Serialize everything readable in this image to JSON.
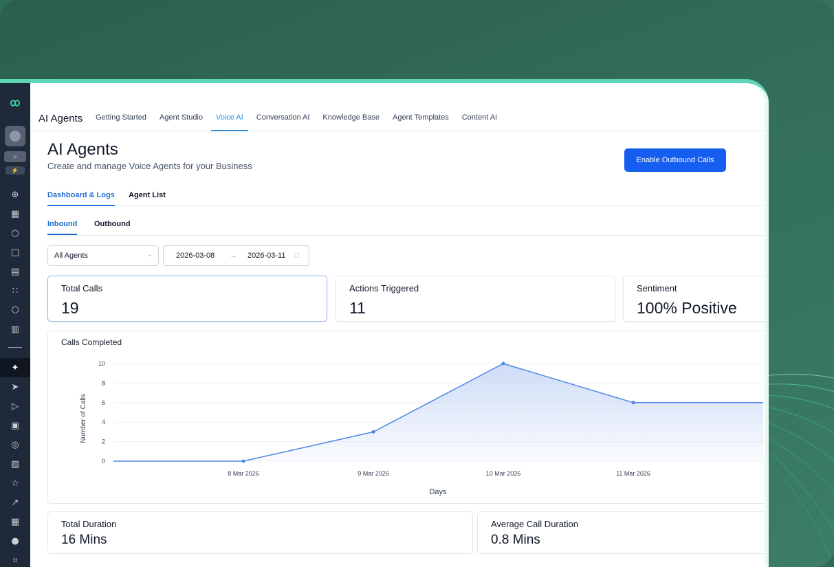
{
  "topnav": {
    "app_title": "AI Agents",
    "items": [
      {
        "label": "Getting Started"
      },
      {
        "label": "Agent Studio"
      },
      {
        "label": "Voice AI",
        "active": true
      },
      {
        "label": "Conversation AI"
      },
      {
        "label": "Knowledge Base"
      },
      {
        "label": "Agent Templates"
      },
      {
        "label": "Content AI"
      }
    ]
  },
  "header": {
    "title": "AI Agents",
    "subtitle": "Create and manage Voice Agents for your Business",
    "enable_button": "Enable Outbound Calls"
  },
  "tabs": {
    "primary": [
      "Dashboard & Logs",
      "Agent List"
    ],
    "secondary": [
      "Inbound",
      "Outbound"
    ]
  },
  "filters": {
    "agent_select": "All Agents",
    "date_start": "2026-03-08",
    "date_end": "2026-03-11"
  },
  "stats": {
    "total_calls": {
      "label": "Total Calls",
      "value": "19"
    },
    "actions_triggered": {
      "label": "Actions Triggered",
      "value": "11"
    },
    "sentiment": {
      "label": "Sentiment",
      "value": "100% Positive"
    },
    "total_duration": {
      "label": "Total Duration",
      "value": "16 Mins"
    },
    "avg_duration": {
      "label": "Average Call Duration",
      "value": "0.8 Mins"
    }
  },
  "chart_data": {
    "type": "area",
    "title": "Calls Completed",
    "xlabel": "Days",
    "ylabel": "Number of Calls",
    "x_ticks": [
      "8 Mar 2026",
      "9 Mar 2026",
      "10 Mar 2026",
      "11 Mar 2026"
    ],
    "y_ticks": [
      0,
      2,
      4,
      6,
      8,
      10
    ],
    "ylim": [
      0,
      10
    ],
    "points": [
      {
        "x": "7 Mar 2026",
        "y": 0
      },
      {
        "x": "8 Mar 2026",
        "y": 0
      },
      {
        "x": "9 Mar 2026",
        "y": 3
      },
      {
        "x": "10 Mar 2026",
        "y": 10
      },
      {
        "x": "11 Mar 2026",
        "y": 6
      },
      {
        "x": "12 Mar 2026",
        "y": 6
      }
    ],
    "colors": {
      "line": "#4f86e6",
      "fill_top": "#c9d8f6",
      "grid": "#eef0f3"
    },
    "grid": true,
    "legend": "none"
  },
  "sidebar": {
    "icons": [
      "logo-icon",
      "avatar-icon",
      "search-icon",
      "bolt-icon",
      "launchpad-icon",
      "dashboard-icon",
      "chat-icon",
      "calendar-icon",
      "contacts-icon",
      "workflow-icon",
      "box-icon",
      "document-icon",
      "ai-sparkle-icon",
      "send-icon",
      "play-icon",
      "site-icon",
      "badge-icon",
      "image-icon",
      "star-icon",
      "trend-icon",
      "apps-icon",
      "chat-bubbles-icon",
      "frame-icon"
    ]
  }
}
